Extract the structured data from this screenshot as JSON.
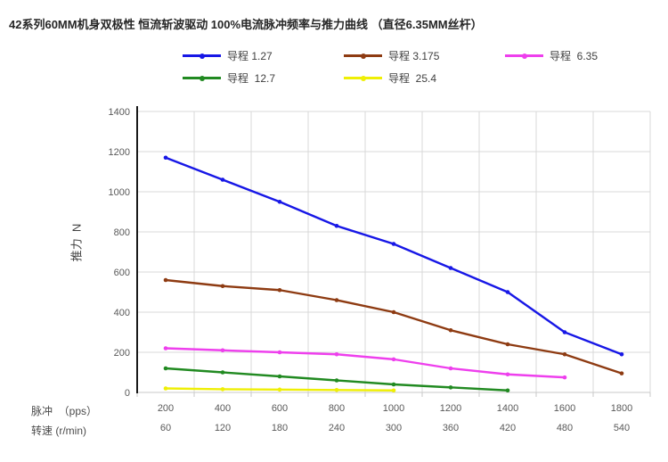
{
  "title": "42系列60MM机身双极性 恒流斩波驱动 100%电流脉冲频率与推力曲线 （直径6.35MM丝杆）",
  "axes": {
    "y_title": "推力  N",
    "x_row1_label": "脉冲  （pps）",
    "x_row2_label": "转速 (r/min)"
  },
  "colors": {
    "gridline": "#d9d9d9",
    "y_axis_line": "#1a1a1a",
    "x_axis_line": "#c9c9c9",
    "tick_label": "#595959",
    "title_text": "#262626",
    "legend_text": "#3f3f3f"
  },
  "chart_data": {
    "type": "line",
    "title": "42系列60MM机身双极性 恒流斩波驱动 100%电流脉冲频率与推力曲线 （直径6.35MM丝杆）",
    "xlabel_row1": "脉冲 (pps)",
    "xlabel_row2": "转速 (r/min)",
    "ylabel": "推力 N",
    "ylim": [
      0,
      1400
    ],
    "yticks": [
      0,
      200,
      400,
      600,
      800,
      1000,
      1200,
      1400
    ],
    "grid": true,
    "legend_position": "top",
    "categories_pps": [
      200,
      400,
      600,
      800,
      1000,
      1200,
      1400,
      1600,
      1800
    ],
    "categories_rpm": [
      60,
      120,
      180,
      240,
      300,
      360,
      420,
      480,
      540
    ],
    "series": [
      {
        "name": "导程 1.27",
        "color": "#1717e6",
        "values": [
          1170,
          1060,
          950,
          830,
          740,
          620,
          500,
          300,
          190
        ]
      },
      {
        "name": "导程 3.175",
        "color": "#8e3b12",
        "values": [
          560,
          530,
          510,
          460,
          400,
          310,
          240,
          190,
          95
        ]
      },
      {
        "name": "导程  6.35",
        "color": "#ee3fed",
        "values": [
          220,
          210,
          200,
          190,
          165,
          120,
          90,
          75,
          null
        ]
      },
      {
        "name": "导程  12.7",
        "color": "#218a21",
        "values": [
          120,
          100,
          80,
          60,
          40,
          25,
          10,
          null,
          null
        ]
      },
      {
        "name": "导程  25.4",
        "color": "#efef05",
        "values": [
          20,
          16,
          14,
          12,
          10,
          null,
          null,
          null,
          null
        ]
      }
    ]
  }
}
